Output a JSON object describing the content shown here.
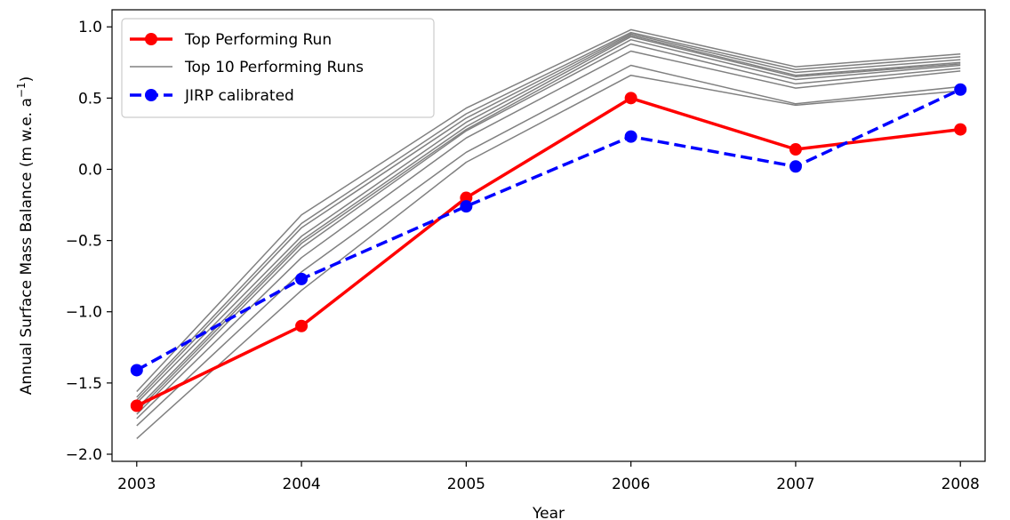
{
  "chart_data": {
    "type": "line",
    "title": "",
    "xlabel": "Year",
    "ylabel": "Annual Surface Mass Balance (m w.e. a",
    "ylabel_superscript": "−1",
    "ylabel_suffix": ")",
    "x": [
      2003,
      2004,
      2005,
      2006,
      2007,
      2008
    ],
    "x_tick_labels": [
      "2003",
      "2004",
      "2005",
      "2006",
      "2007",
      "2008"
    ],
    "y_ticks": [
      -2.0,
      -1.5,
      -1.0,
      -0.5,
      0.0,
      0.5,
      1.0
    ],
    "y_tick_labels": [
      "−2.0",
      "−1.5",
      "−1.0",
      "−0.5",
      "0.0",
      "0.5",
      "1.0"
    ],
    "xlim": [
      2002.85,
      2008.15
    ],
    "ylim": [
      -2.05,
      1.12
    ],
    "grid": false,
    "legend_position": "top-left",
    "series": [
      {
        "name": "Top Performing Run",
        "color": "#ff0000",
        "style": "solid",
        "marker": "circle",
        "values": [
          -1.66,
          -1.1,
          -0.2,
          0.5,
          0.14,
          0.28
        ]
      },
      {
        "name": "Top 10 Performing Runs",
        "color": "#808080",
        "style": "thin",
        "marker": "none",
        "runs": [
          [
            -1.89,
            -0.85,
            0.05,
            0.66,
            0.45,
            0.55
          ],
          [
            -1.8,
            -0.72,
            0.12,
            0.73,
            0.46,
            0.58
          ],
          [
            -1.75,
            -0.62,
            0.22,
            0.83,
            0.57,
            0.69
          ],
          [
            -1.72,
            -0.55,
            0.27,
            0.88,
            0.6,
            0.71
          ],
          [
            -1.7,
            -0.52,
            0.28,
            0.91,
            0.63,
            0.73
          ],
          [
            -1.68,
            -0.5,
            0.3,
            0.93,
            0.65,
            0.74
          ],
          [
            -1.64,
            -0.47,
            0.33,
            0.94,
            0.66,
            0.75
          ],
          [
            -1.62,
            -0.41,
            0.36,
            0.95,
            0.68,
            0.77
          ],
          [
            -1.6,
            -0.38,
            0.39,
            0.96,
            0.7,
            0.79
          ],
          [
            -1.56,
            -0.32,
            0.43,
            0.98,
            0.72,
            0.81
          ]
        ]
      },
      {
        "name": "JIRP calibrated",
        "color": "#0000ff",
        "style": "dashed",
        "marker": "circle",
        "values": [
          -1.41,
          -0.77,
          -0.26,
          0.23,
          0.02,
          0.56
        ]
      }
    ]
  }
}
